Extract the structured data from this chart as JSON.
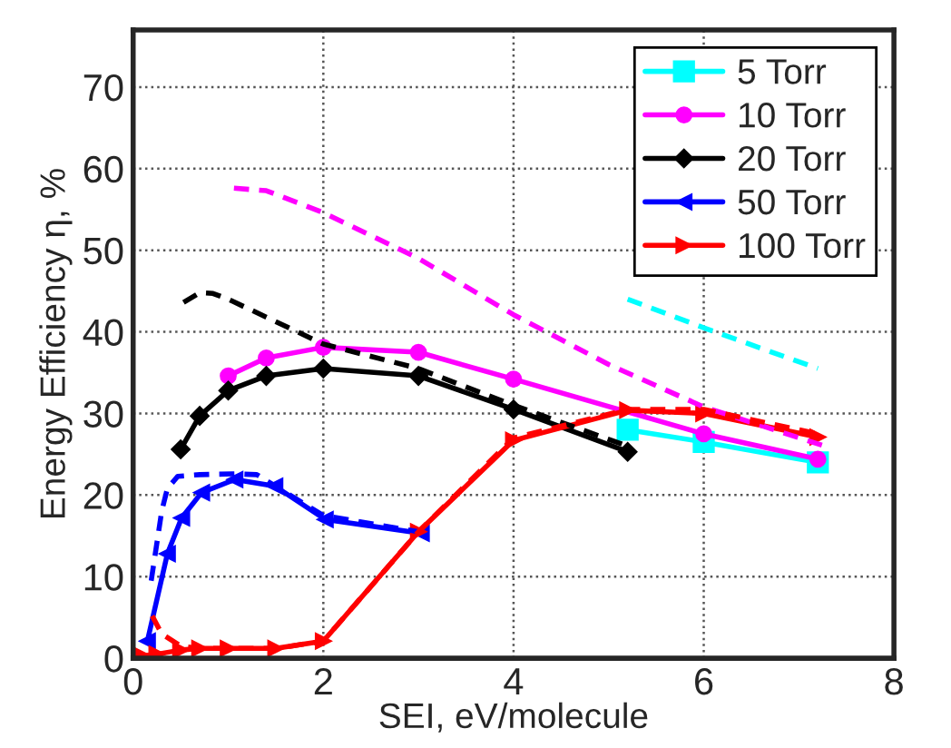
{
  "chart_data": {
    "type": "line",
    "xlabel": "SEI, eV/molecule",
    "ylabel": "Energy Efficiency η, %",
    "xlim": [
      0,
      8
    ],
    "xticks": [
      0,
      2,
      4,
      6,
      8
    ],
    "ylim": [
      0,
      77
    ],
    "yticks": [
      0,
      10,
      20,
      30,
      40,
      50,
      60,
      70
    ],
    "grid": true,
    "legend": "top right",
    "series": [
      {
        "name": "5 Torr",
        "color": "#00ffff",
        "marker": "square",
        "line_style": "solid",
        "x": [
          5.2,
          6,
          7.2
        ],
        "values": [
          28,
          26.5,
          24
        ]
      },
      {
        "name": "10 Torr",
        "color": "#ff00ff",
        "marker": "circle",
        "line_style": "solid",
        "x": [
          1,
          1.4,
          2,
          3,
          4,
          6,
          7.2
        ],
        "values": [
          34.6,
          36.8,
          38.1,
          37.5,
          34.2,
          27.5,
          24.4
        ]
      },
      {
        "name": "20 Torr",
        "color": "#000000",
        "marker": "diamond",
        "line_style": "solid",
        "x": [
          0.5,
          0.7,
          1,
          1.4,
          2,
          3,
          4,
          5.2
        ],
        "values": [
          25.6,
          29.7,
          32.8,
          34.6,
          35.5,
          34.6,
          30.5,
          25.3
        ]
      },
      {
        "name": "50 Torr",
        "color": "#0000ff",
        "marker": "triangle_left",
        "line_style": "solid",
        "x": [
          0.15,
          0.36,
          0.51,
          0.72,
          1.07,
          1.49,
          2.02,
          3.03
        ],
        "values": [
          2.1,
          12.8,
          17.2,
          20.3,
          21.9,
          21.1,
          17.0,
          15.3
        ]
      },
      {
        "name": "100 Torr",
        "color": "#ff0000",
        "marker": "triangle_right",
        "line_style": "solid",
        "x": [
          0.1,
          0.25,
          0.5,
          0.7,
          1,
          1.5,
          2,
          3,
          4,
          5.2,
          6,
          7.2
        ],
        "values": [
          0.3,
          0.5,
          1.0,
          1.2,
          1.2,
          1.2,
          2.1,
          15.5,
          26.7,
          30.4,
          30,
          27.1
        ]
      },
      {
        "color": "#00ffff",
        "marker": "none",
        "line_style": "dashed",
        "x": [
          5.2,
          6,
          7.2
        ],
        "values": [
          44,
          40.5,
          35.5
        ]
      },
      {
        "color": "#ff00ff",
        "marker": "none",
        "line_style": "dashed",
        "x": [
          1.06,
          1.4,
          2,
          3,
          4,
          5,
          6,
          7.27
        ],
        "values": [
          57.6,
          57.3,
          54.6,
          49,
          42.1,
          36,
          30.8,
          26
        ]
      },
      {
        "color": "#000000",
        "marker": "none",
        "line_style": "dashed",
        "x": [
          0.53,
          0.7,
          0.84,
          1,
          2,
          3,
          4,
          5.2
        ],
        "values": [
          43.6,
          44.8,
          44.7,
          44,
          38.5,
          35.5,
          31,
          26
        ]
      },
      {
        "color": "#0000ff",
        "marker": "none",
        "line_style": "dashed",
        "x": [
          0.19,
          0.3,
          0.36,
          0.47,
          0.7,
          1.07,
          1.3,
          2,
          3
        ],
        "values": [
          9.5,
          18,
          20.8,
          22.3,
          22.5,
          22.6,
          22.5,
          17.5,
          15.5
        ]
      },
      {
        "color": "#ff0000",
        "marker": "none",
        "line_style": "dashed",
        "x": [
          0.2,
          0.3,
          0.5,
          0.7,
          1,
          1.5,
          2,
          3,
          4,
          5.2,
          6,
          7.2
        ],
        "values": [
          5.2,
          3,
          1.5,
          1.2,
          1.2,
          1.2,
          2.1,
          15.5,
          27,
          30.5,
          30.5,
          27.5
        ]
      }
    ]
  }
}
